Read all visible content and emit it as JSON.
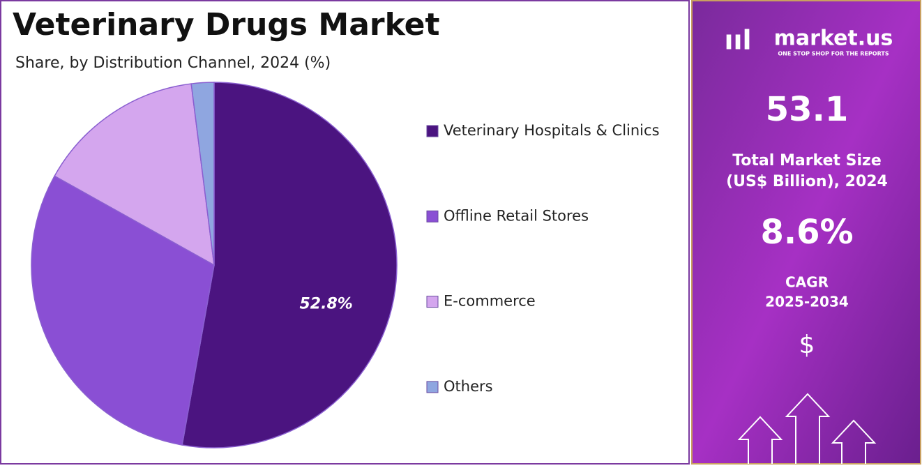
{
  "chart_data": {
    "type": "pie",
    "title": "Veterinary Drugs Market",
    "subtitle": "Share, by Distribution Channel, 2024 (%)",
    "categories": [
      "Veterinary Hospitals & Clinics",
      "Offline Retail Stores",
      "E-commerce",
      "Others"
    ],
    "values": [
      52.8,
      30.3,
      14.9,
      2.0
    ],
    "value_labels": [
      "52.8%",
      null,
      null,
      null
    ],
    "colors": [
      "#4b1480",
      "#8a4fd4",
      "#d4a6ee",
      "#8fa6e0"
    ],
    "legend": "right"
  },
  "panel": {
    "brand": "market.us",
    "tagline": "ONE STOP SHOP FOR THE REPORTS",
    "market_size": "53.1",
    "market_size_label_1": "Total Market Size",
    "market_size_label_2": "(US$ Billion), 2024",
    "cagr": "8.6%",
    "cagr_label_1": "CAGR",
    "cagr_label_2": "2025-2034",
    "currency_icon": "$"
  }
}
